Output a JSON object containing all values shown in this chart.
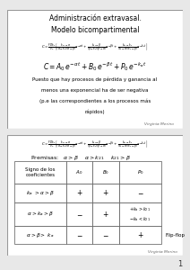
{
  "bg_color": "#e8e8e8",
  "slide_bg": "#ffffff",
  "border_color": "#999999",
  "title_top": "Administración extravasal.",
  "title_bottom": "Modelo bicompartimental",
  "author": "Virginia Merino",
  "flip_flop": "Flip-flop",
  "page_num": "1",
  "note_lines": [
    "Puesto que hay procesos de pérdida y ganancia al",
    "menos una exponencial ha de ser negativa",
    "(p.e las correspondientes a los procesos más",
    "rápidos)"
  ],
  "row1_label": "k_a >\\alpha>\\beta",
  "row2_label": "\\alpha>k_a>\\beta",
  "row3_label": "\\alpha>\\beta> k_a"
}
